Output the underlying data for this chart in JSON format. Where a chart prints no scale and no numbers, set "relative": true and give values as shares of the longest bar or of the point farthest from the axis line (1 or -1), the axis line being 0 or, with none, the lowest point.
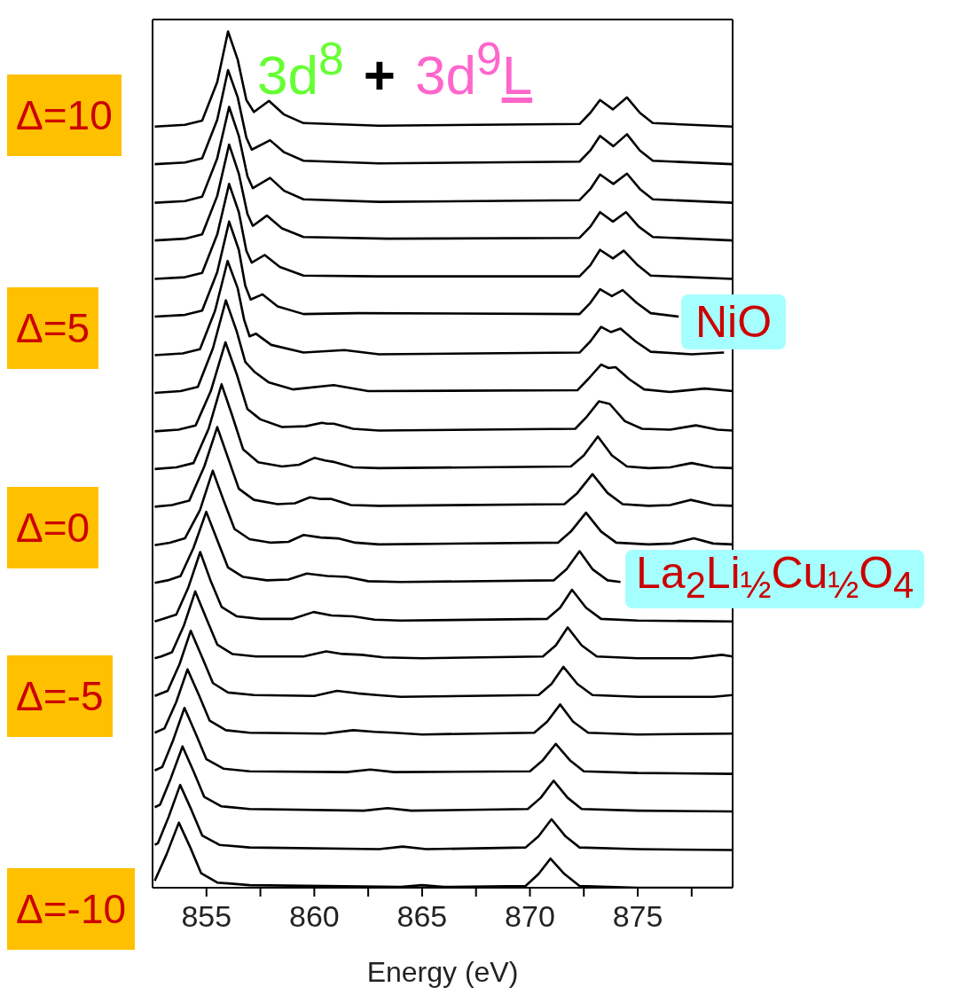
{
  "chart_data": {
    "type": "line",
    "xlabel": "Energy (eV)",
    "xlim": [
      852.5,
      879.4
    ],
    "xticks": [
      855,
      {
        "value": 857.5,
        "label": null
      },
      860,
      {
        "value": 862.5,
        "label": null
      },
      865,
      {
        "value": 867.5,
        "label": null
      },
      870,
      {
        "value": 872.5,
        "label": null
      },
      875,
      {
        "value": 877.5,
        "label": null
      }
    ],
    "relative": true,
    "line_style": "solid",
    "annotations": [
      "3d$^{8}$",
      "+",
      "3d$^{9}$L",
      "Δ=10",
      "Δ=5",
      "Δ=0",
      "Δ=-5",
      "Δ=-10",
      "NiO",
      "La$_{2}$Li$_{½}$Cu$_{½}$O$_{4}$"
    ],
    "series": [
      {
        "color": "#000000",
        "x": [
          852.6,
          854.0,
          854.8,
          855.5,
          856.0,
          856.45,
          856.85,
          857.2,
          857.9,
          858.6,
          859.5,
          863,
          872.3,
          872.8,
          873.25,
          873.85,
          874.5,
          875.1,
          875.7,
          879.4
        ],
        "values": [
          0.889,
          0.891,
          0.896,
          0.941,
          1,
          0.967,
          0.92,
          0.906,
          0.919,
          0.903,
          0.893,
          0.89,
          0.892,
          0.905,
          0.92,
          0.909,
          0.923,
          0.905,
          0.893,
          0.889
        ]
      },
      {
        "color": "#000000",
        "x": [
          852.6,
          854.0,
          854.8,
          855.5,
          856.0,
          856.45,
          856.85,
          857.1,
          857.95,
          858.6,
          859.5,
          863,
          872.3,
          872.8,
          873.25,
          873.87,
          874.5,
          875.1,
          875.7,
          879.4
        ],
        "values": [
          0.845,
          0.847,
          0.852,
          0.897,
          0.955,
          0.923,
          0.876,
          0.862,
          0.873,
          0.859,
          0.849,
          0.846,
          0.848,
          0.861,
          0.878,
          0.866,
          0.88,
          0.861,
          0.849,
          0.845
        ]
      },
      {
        "color": "#000000",
        "x": [
          852.6,
          854.0,
          854.8,
          855.5,
          856.05,
          856.5,
          856.9,
          857.15,
          857.95,
          858.6,
          859.5,
          863,
          872.3,
          872.8,
          873.25,
          873.87,
          874.5,
          875.1,
          875.7,
          879.4
        ],
        "values": [
          0.8,
          0.802,
          0.807,
          0.852,
          0.912,
          0.878,
          0.831,
          0.817,
          0.829,
          0.814,
          0.804,
          0.801,
          0.803,
          0.816,
          0.833,
          0.822,
          0.834,
          0.816,
          0.804,
          0.8
        ]
      },
      {
        "color": "#000000",
        "x": [
          852.6,
          854.0,
          854.8,
          855.5,
          856.05,
          856.5,
          856.9,
          857.15,
          857.8,
          858.5,
          859.5,
          863.4,
          872.3,
          872.8,
          873.25,
          873.85,
          874.45,
          875.05,
          875.7,
          879.4
        ],
        "values": [
          0.756,
          0.758,
          0.763,
          0.808,
          0.868,
          0.834,
          0.787,
          0.773,
          0.785,
          0.77,
          0.76,
          0.758,
          0.759,
          0.772,
          0.789,
          0.778,
          0.789,
          0.772,
          0.76,
          0.756
        ]
      },
      {
        "color": "#000000",
        "x": [
          852.6,
          854.0,
          854.8,
          855.5,
          856.05,
          856.5,
          856.85,
          857.1,
          857.7,
          858.4,
          859.5,
          862.9,
          872.3,
          872.8,
          873.25,
          873.85,
          874.35,
          875.0,
          875.6,
          879.4
        ],
        "values": [
          0.711,
          0.713,
          0.718,
          0.763,
          0.822,
          0.789,
          0.744,
          0.73,
          0.739,
          0.725,
          0.715,
          0.714,
          0.714,
          0.727,
          0.745,
          0.735,
          0.744,
          0.727,
          0.715,
          0.711
        ]
      },
      {
        "color": "#000000",
        "x": [
          852.6,
          854.0,
          854.8,
          855.5,
          856.05,
          856.5,
          856.8,
          857.05,
          857.6,
          858.3,
          859.5,
          862.0,
          872.3,
          872.8,
          873.25,
          873.8,
          874.3,
          874.95,
          875.6,
          876.9
        ],
        "values": [
          0.667,
          0.669,
          0.674,
          0.719,
          0.778,
          0.745,
          0.703,
          0.687,
          0.693,
          0.679,
          0.67,
          0.671,
          0.67,
          0.683,
          0.699,
          0.691,
          0.698,
          0.683,
          0.671,
          0.667
        ]
      },
      {
        "color": "#000000",
        "x": [
          852.6,
          853.9,
          854.7,
          855.4,
          855.98,
          856.45,
          856.75,
          857.0,
          857.3,
          858.0,
          859.5,
          861.4,
          863,
          872.3,
          872.8,
          873.3,
          873.75,
          874.2,
          874.9,
          875.6,
          877.5,
          879.0
        ],
        "values": [
          0.622,
          0.624,
          0.629,
          0.674,
          0.732,
          0.7,
          0.663,
          0.644,
          0.647,
          0.634,
          0.625,
          0.628,
          0.623,
          0.625,
          0.638,
          0.655,
          0.649,
          0.653,
          0.638,
          0.626,
          0.623,
          0.625
        ]
      },
      {
        "color": "#000000",
        "x": [
          852.6,
          853.8,
          854.6,
          855.3,
          855.9,
          856.4,
          856.8,
          857.25,
          857.9,
          859.0,
          860.9,
          862.5,
          872.2,
          872.7,
          873.3,
          873.65,
          873.97,
          874.6,
          875.3,
          876.5,
          878.1,
          879.4
        ],
        "values": [
          0.578,
          0.58,
          0.585,
          0.63,
          0.686,
          0.65,
          0.614,
          0.602,
          0.59,
          0.582,
          0.587,
          0.58,
          0.581,
          0.594,
          0.611,
          0.607,
          0.608,
          0.594,
          0.582,
          0.579,
          0.583,
          0.58
        ]
      },
      {
        "color": "#000000",
        "x": [
          852.6,
          853.7,
          854.5,
          855.2,
          855.88,
          856.4,
          856.9,
          857.5,
          858.5,
          859.6,
          860.35,
          860.6,
          860.9,
          861.8,
          863,
          872.1,
          872.6,
          873.2,
          873.7,
          874.4,
          875.2,
          876.5,
          877.7,
          878.7,
          879.4
        ],
        "values": [
          0.533,
          0.535,
          0.54,
          0.58,
          0.637,
          0.6,
          0.559,
          0.547,
          0.538,
          0.539,
          0.543,
          0.542,
          0.542,
          0.536,
          0.534,
          0.536,
          0.549,
          0.568,
          0.565,
          0.545,
          0.536,
          0.535,
          0.54,
          0.535,
          0.534
        ]
      },
      {
        "color": "#000000",
        "x": [
          852.6,
          853.6,
          854.4,
          855.1,
          855.7,
          856.2,
          856.7,
          857.4,
          858.5,
          859.3,
          860.0,
          860.5,
          860.96,
          861.8,
          863,
          871.9,
          872.5,
          873.15,
          873.8,
          874.5,
          875.5,
          876.5,
          877.5,
          878.5,
          879.4
        ],
        "values": [
          0.489,
          0.491,
          0.496,
          0.536,
          0.588,
          0.551,
          0.512,
          0.497,
          0.492,
          0.494,
          0.502,
          0.499,
          0.497,
          0.491,
          0.49,
          0.492,
          0.505,
          0.527,
          0.505,
          0.492,
          0.49,
          0.491,
          0.496,
          0.491,
          0.49
        ]
      },
      {
        "color": "#000000",
        "x": [
          852.6,
          853.4,
          854.2,
          854.9,
          855.5,
          856.0,
          856.5,
          857.2,
          858.3,
          859.1,
          859.8,
          860.3,
          860.8,
          861.7,
          863,
          871.6,
          872.2,
          872.9,
          873.6,
          874.3,
          875.5,
          876.5,
          877.45,
          878.5,
          879.4
        ],
        "values": [
          0.445,
          0.447,
          0.452,
          0.492,
          0.538,
          0.502,
          0.466,
          0.453,
          0.448,
          0.449,
          0.456,
          0.454,
          0.454,
          0.447,
          0.446,
          0.448,
          0.461,
          0.483,
          0.461,
          0.448,
          0.446,
          0.447,
          0.453,
          0.447,
          0.446
        ]
      },
      {
        "color": "#000000",
        "x": [
          852.6,
          853.3,
          854.0,
          854.7,
          855.29,
          855.8,
          856.3,
          857.0,
          858.0,
          858.8,
          859.5,
          860.3,
          861.1,
          861.9,
          863,
          871.3,
          871.9,
          872.6,
          873.3,
          874.0,
          875.5,
          876.6,
          877.6,
          878.5,
          879.4
        ],
        "values": [
          0.4,
          0.403,
          0.408,
          0.441,
          0.487,
          0.452,
          0.419,
          0.407,
          0.403,
          0.404,
          0.412,
          0.409,
          0.408,
          0.403,
          0.401,
          0.403,
          0.416,
          0.438,
          0.416,
          0.403,
          0.401,
          0.402,
          0.408,
          0.402,
          0.401
        ]
      },
      {
        "color": "#000000",
        "x": [
          852.6,
          853.2,
          853.8,
          854.4,
          854.99,
          855.5,
          856.0,
          856.7,
          857.8,
          858.8,
          859.65,
          860.6,
          861.5,
          862.5,
          864,
          871.1,
          871.7,
          872.3,
          872.9,
          873.6,
          874.2
        ],
        "values": [
          0.356,
          0.359,
          0.364,
          0.397,
          0.439,
          0.406,
          0.374,
          0.363,
          0.359,
          0.36,
          0.367,
          0.364,
          0.363,
          0.358,
          0.357,
          0.359,
          0.372,
          0.393,
          0.372,
          0.359,
          0.357
        ]
      },
      {
        "color": "#000000",
        "x": [
          852.6,
          853.0,
          853.6,
          854.15,
          854.71,
          855.2,
          855.7,
          856.4,
          857.5,
          859.0,
          859.97,
          860.8,
          861.8,
          862.8,
          864,
          870.8,
          871.4,
          871.95,
          872.6,
          873.3,
          875,
          879.4
        ],
        "values": [
          0.311,
          0.314,
          0.319,
          0.35,
          0.392,
          0.358,
          0.328,
          0.317,
          0.314,
          0.314,
          0.322,
          0.318,
          0.317,
          0.313,
          0.312,
          0.314,
          0.327,
          0.348,
          0.327,
          0.314,
          0.312,
          0.311
        ]
      },
      {
        "color": "#000000",
        "x": [
          852.6,
          852.9,
          853.4,
          853.95,
          854.48,
          855.0,
          855.5,
          856.2,
          857.3,
          859.5,
          860.55,
          861.3,
          862.2,
          863.2,
          865,
          870.6,
          871.2,
          871.75,
          872.4,
          873.1,
          875,
          877.5,
          878.9,
          879.4
        ],
        "values": [
          0.268,
          0.27,
          0.275,
          0.306,
          0.346,
          0.314,
          0.284,
          0.273,
          0.27,
          0.27,
          0.276,
          0.273,
          0.272,
          0.269,
          0.268,
          0.27,
          0.283,
          0.304,
          0.283,
          0.27,
          0.268,
          0.268,
          0.272,
          0.27
        ]
      },
      {
        "color": "#000000",
        "x": [
          852.6,
          853.2,
          853.75,
          854.27,
          854.8,
          855.3,
          856.0,
          857.2,
          860.0,
          861.05,
          862.0,
          862.9,
          864,
          870.4,
          871.0,
          871.55,
          872.2,
          872.9,
          875,
          878.5,
          879.4
        ],
        "values": [
          0.224,
          0.23,
          0.261,
          0.3,
          0.269,
          0.239,
          0.228,
          0.225,
          0.224,
          0.23,
          0.227,
          0.225,
          0.223,
          0.225,
          0.238,
          0.258,
          0.238,
          0.225,
          0.223,
          0.223,
          0.225
        ]
      },
      {
        "color": "#000000",
        "x": [
          852.6,
          853.05,
          853.6,
          854.12,
          854.65,
          855.15,
          855.9,
          857.0,
          860.5,
          861.8,
          862.8,
          863.7,
          865,
          870.2,
          870.8,
          871.4,
          872.0,
          872.7,
          875,
          879.4
        ],
        "values": [
          0.181,
          0.186,
          0.217,
          0.255,
          0.225,
          0.195,
          0.184,
          0.181,
          0.18,
          0.184,
          0.182,
          0.181,
          0.179,
          0.181,
          0.194,
          0.214,
          0.194,
          0.181,
          0.179,
          0.18
        ]
      },
      {
        "color": "#000000",
        "x": [
          852.6,
          852.95,
          853.45,
          853.98,
          854.5,
          855.0,
          855.8,
          857.0,
          861.5,
          862.6,
          863.7,
          870.0,
          870.6,
          871.2,
          871.85,
          872.5,
          875,
          879.4
        ],
        "values": [
          0.137,
          0.141,
          0.172,
          0.21,
          0.18,
          0.15,
          0.139,
          0.136,
          0.135,
          0.138,
          0.135,
          0.136,
          0.149,
          0.168,
          0.149,
          0.136,
          0.134,
          0.133
        ]
      },
      {
        "color": "#000000",
        "x": [
          852.6,
          852.85,
          853.35,
          853.89,
          854.4,
          854.9,
          855.7,
          857.0,
          862.3,
          863.4,
          864.5,
          869.9,
          870.5,
          871.1,
          871.75,
          872.4,
          875,
          879.4
        ],
        "values": [
          0.094,
          0.097,
          0.128,
          0.165,
          0.136,
          0.106,
          0.095,
          0.092,
          0.09,
          0.093,
          0.09,
          0.092,
          0.105,
          0.125,
          0.105,
          0.092,
          0.09,
          0.089
        ]
      },
      {
        "color": "#000000",
        "x": [
          852.6,
          852.75,
          853.25,
          853.78,
          854.3,
          854.8,
          855.6,
          857.0,
          863.0,
          864.1,
          865.2,
          869.8,
          870.4,
          871.0,
          871.65,
          872.3,
          875,
          879.4
        ],
        "values": [
          0.05,
          0.052,
          0.083,
          0.12,
          0.091,
          0.061,
          0.05,
          0.047,
          0.045,
          0.048,
          0.045,
          0.047,
          0.06,
          0.08,
          0.06,
          0.047,
          0.045,
          0.044
        ]
      },
      {
        "color": "#000000",
        "x": [
          852.6,
          853.15,
          853.72,
          854.25,
          854.75,
          855.5,
          857.0,
          864.0,
          865.0,
          866.0,
          869.8,
          870.4,
          870.95,
          871.6,
          872.3,
          875,
          879.4
        ],
        "values": [
          0.008,
          0.039,
          0.076,
          0.047,
          0.017,
          0.006,
          0.003,
          0.001,
          0.003,
          0.001,
          0.002,
          0.016,
          0.034,
          0.016,
          0.002,
          0,
          0
        ]
      }
    ]
  }
}
